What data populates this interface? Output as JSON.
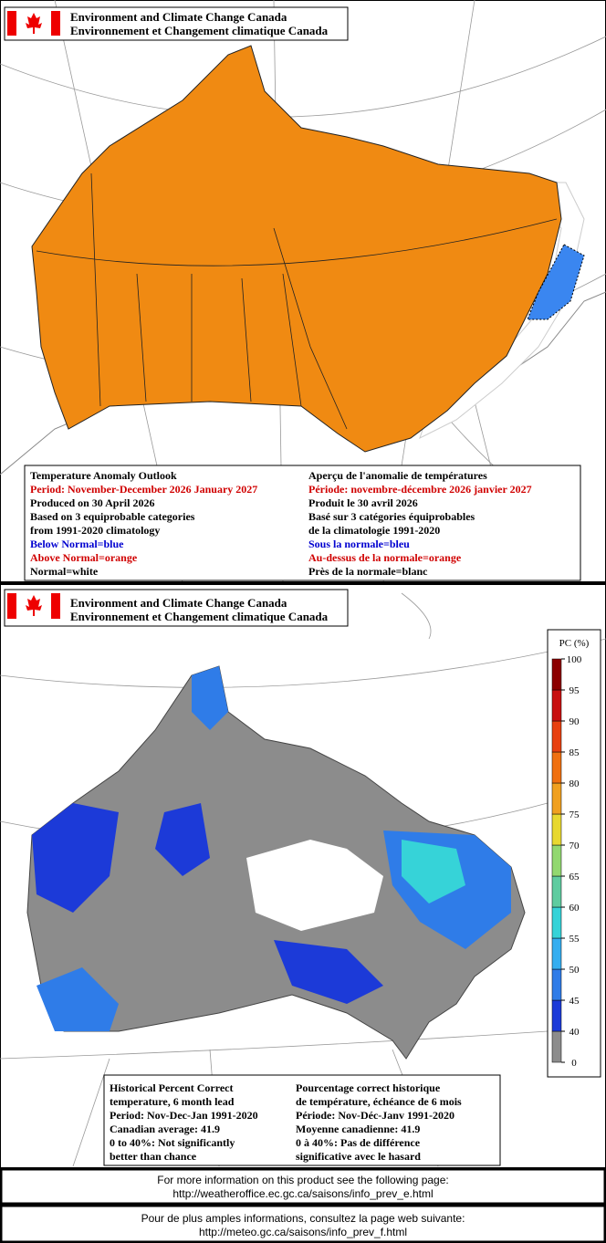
{
  "outlook_panel": {
    "header": {
      "line1": "Environment and Climate Change Canada",
      "line2": "Environnement et Changement climatique Canada"
    },
    "legend_en": [
      {
        "text": "Temperature Anomaly Outlook",
        "color": "#000000"
      },
      {
        "text": "Period: November-December 2026 January 2027",
        "color": "#d00000"
      },
      {
        "text": "Produced on 30 April 2026",
        "color": "#000000"
      },
      {
        "text": "Based on 3 equiprobable categories",
        "color": "#000000"
      },
      {
        "text": "from 1991-2020 climatology",
        "color": "#000000"
      },
      {
        "text": "Below Normal=blue",
        "color": "#0000d0"
      },
      {
        "text": "Above Normal=orange",
        "color": "#d00000"
      },
      {
        "text": "Normal=white",
        "color": "#000000"
      }
    ],
    "legend_fr": [
      {
        "text": "Aperçu de l'anomalie de températures",
        "color": "#000000"
      },
      {
        "text": "Période: novembre-décembre 2026 janvier 2027",
        "color": "#d00000"
      },
      {
        "text": "Produit le 30 avril 2026",
        "color": "#000000"
      },
      {
        "text": "Basé sur 3 catégories équiprobables",
        "color": "#000000"
      },
      {
        "text": "de la climatologie 1991-2020",
        "color": "#000000"
      },
      {
        "text": "Sous la normale=bleu",
        "color": "#0000d0"
      },
      {
        "text": "Au-dessus de la normale=orange",
        "color": "#d00000"
      },
      {
        "text": "Près de la normale=blanc",
        "color": "#000000"
      }
    ]
  },
  "skill_panel": {
    "header": {
      "line1": "Environment and Climate Change Canada",
      "line2": "Environnement et Changement climatique Canada"
    },
    "colorbar": {
      "title": "PC (%)",
      "ticks": [
        0,
        40,
        45,
        50,
        55,
        60,
        65,
        70,
        75,
        80,
        85,
        90,
        95,
        100
      ],
      "colors": [
        "#8c8c8c",
        "#1c3ad8",
        "#2f7ce8",
        "#35aef0",
        "#36d3d8",
        "#5fcca0",
        "#92d870",
        "#e8d830",
        "#f0a020",
        "#f07010",
        "#e84010",
        "#c81010",
        "#8c0000"
      ]
    },
    "legend_en": [
      {
        "text": "Historical Percent Correct",
        "color": "#000000"
      },
      {
        "text": "temperature, 6 month lead",
        "color": "#000000"
      },
      {
        "text": "Period: Nov-Dec-Jan 1991-2020",
        "color": "#000000"
      },
      {
        "text": "Canadian average: 41.9",
        "color": "#000000"
      },
      {
        "text": "0 to 40%: Not significantly",
        "color": "#000000"
      },
      {
        "text": "better than chance",
        "color": "#000000"
      }
    ],
    "legend_fr": [
      {
        "text": "Pourcentage correct historique",
        "color": "#000000"
      },
      {
        "text": "de température, échéance de 6 mois",
        "color": "#000000"
      },
      {
        "text": "Période: Nov-Déc-Janv 1991-2020",
        "color": "#000000"
      },
      {
        "text": "Moyenne canadienne: 41.9",
        "color": "#000000"
      },
      {
        "text": "0 à 40%: Pas de différence",
        "color": "#000000"
      },
      {
        "text": "significative avec le hasard",
        "color": "#000000"
      }
    ]
  },
  "footer": {
    "english": {
      "line1": "For more information on this product see the following page:",
      "line2": "http://weatheroffice.ec.gc.ca/saisons/info_prev_e.html"
    },
    "french": {
      "line1": "Pour de plus amples informations, consultez la page web suivante:",
      "line2": "http://meteo.gc.ca/saisons/info_prev_f.html"
    }
  }
}
